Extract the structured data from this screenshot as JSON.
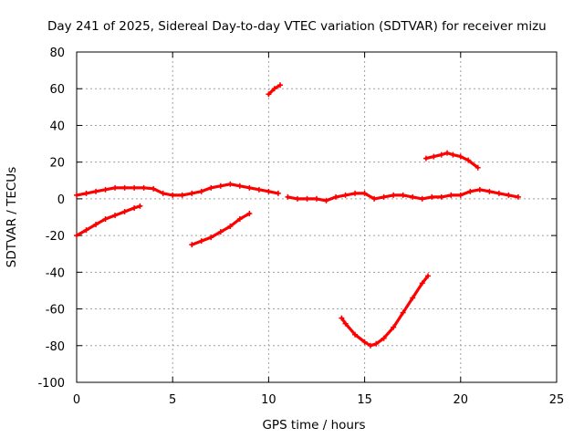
{
  "chart_data": {
    "type": "scatter",
    "title": "Day 241 of 2025, Sidereal Day-to-day VTEC variation (SDTVAR) for receiver mizu",
    "xlabel": "GPS time / hours",
    "ylabel": "SDTVAR / TECUs",
    "xlim": [
      0,
      25
    ],
    "ylim": [
      -100,
      80
    ],
    "xticks": [
      0,
      5,
      10,
      15,
      20,
      25
    ],
    "yticks": [
      -100,
      -80,
      -60,
      -40,
      -20,
      0,
      20,
      40,
      60,
      80
    ],
    "xtick_labels": [
      "0",
      "5",
      "10",
      "15",
      "20",
      "25"
    ],
    "ytick_labels": [
      "-100",
      "-80",
      "-60",
      "-40",
      "-20",
      "0",
      "20",
      "40",
      "60",
      "80"
    ],
    "grid": true,
    "marker_color": "#ff0000",
    "series": [
      {
        "name": "band-near-zero-1",
        "x": [
          0,
          0.5,
          1,
          1.5,
          2,
          2.5,
          3,
          3.5,
          4,
          4.5,
          5,
          5.5,
          6,
          6.5,
          7,
          7.5,
          8,
          8.5,
          9,
          9.5,
          10,
          10.5
        ],
        "y": [
          2,
          3,
          4,
          5,
          6,
          6,
          6,
          6,
          5.5,
          3,
          2,
          2,
          3,
          4,
          6,
          7,
          8,
          7,
          6,
          5,
          4,
          3
        ]
      },
      {
        "name": "band-near-zero-2",
        "x": [
          11,
          11.5,
          12,
          12.5,
          13,
          13.5,
          14,
          14.5,
          15,
          15.5,
          16,
          16.5,
          17,
          17.5,
          18,
          18.5,
          19,
          19.5,
          20,
          20.5,
          21,
          21.5,
          22,
          22.5,
          23
        ],
        "y": [
          1,
          0,
          0,
          0,
          -1,
          1,
          2,
          3,
          3,
          0,
          1,
          2,
          2,
          1,
          0,
          1,
          1,
          2,
          2,
          4,
          5,
          4,
          3,
          2,
          1
        ]
      },
      {
        "name": "arc-early-negative",
        "x": [
          0,
          0.5,
          1,
          1.5,
          2,
          2.5,
          3,
          3.3
        ],
        "y": [
          -20,
          -17,
          -14,
          -11,
          -9,
          -7,
          -5,
          -4
        ]
      },
      {
        "name": "arc-morning-negative",
        "x": [
          6,
          6.5,
          7,
          7.5,
          8,
          8.5,
          9
        ],
        "y": [
          -25,
          -23,
          -21,
          -18,
          -15,
          -11,
          -8
        ]
      },
      {
        "name": "arc-high",
        "x": [
          10,
          10.3,
          10.6
        ],
        "y": [
          57,
          60,
          62
        ]
      },
      {
        "name": "arc-deep-dip",
        "x": [
          13.8,
          14,
          14.5,
          15,
          15.3,
          15.6,
          16,
          16.5,
          17,
          17.5,
          18,
          18.3
        ],
        "y": [
          -65,
          -68,
          -74,
          -78,
          -80,
          -79,
          -76,
          -70,
          -62,
          -54,
          -46,
          -42
        ]
      },
      {
        "name": "arc-evening-positive",
        "x": [
          18.2,
          18.6,
          19,
          19.3,
          19.6,
          20,
          20.4,
          20.9
        ],
        "y": [
          22,
          23,
          24,
          25,
          24,
          23,
          21,
          17
        ]
      }
    ]
  }
}
